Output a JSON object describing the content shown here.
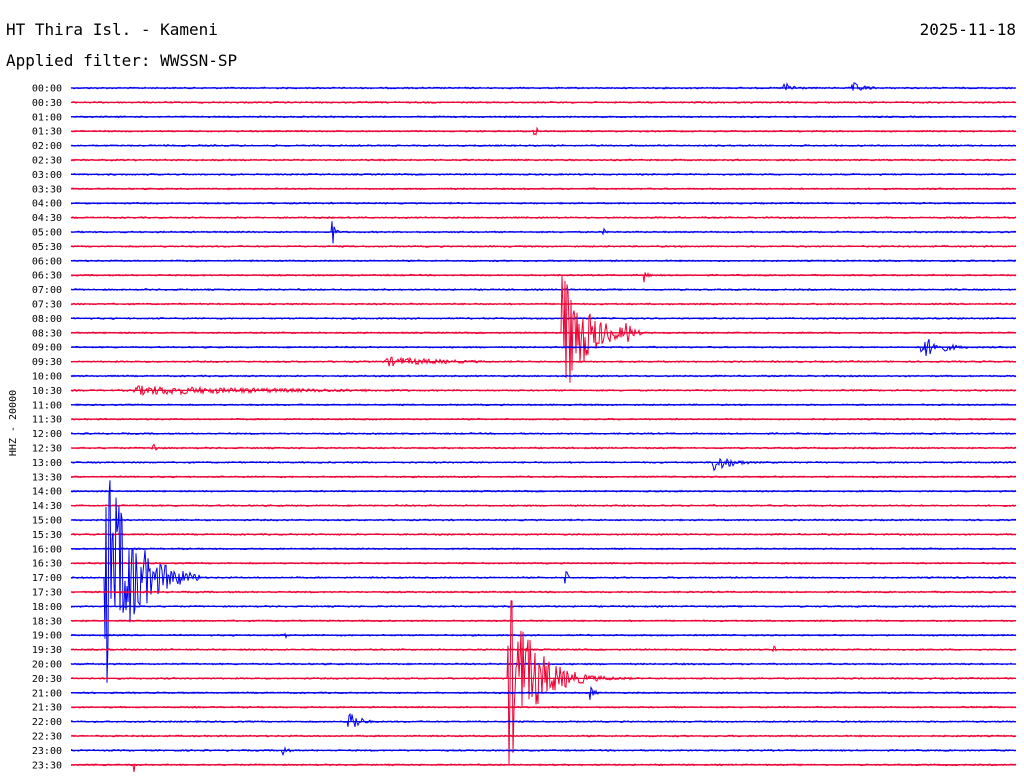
{
  "header": {
    "title": "HT Thira Isl. - Kameni",
    "date": "2025-11-18",
    "filter": "Applied filter: WWSSN-SP"
  },
  "chart_data": {
    "type": "line",
    "side_label": "HHZ - 20000",
    "colors": [
      "#0000ee",
      "#ee0033"
    ],
    "rows": [
      "00:00",
      "00:30",
      "01:00",
      "01:30",
      "02:00",
      "02:30",
      "03:00",
      "03:30",
      "04:00",
      "04:30",
      "05:00",
      "05:30",
      "06:00",
      "06:30",
      "07:00",
      "07:30",
      "08:00",
      "08:30",
      "09:00",
      "09:30",
      "10:00",
      "10:30",
      "11:00",
      "11:30",
      "12:00",
      "12:30",
      "13:00",
      "13:30",
      "14:00",
      "14:30",
      "15:00",
      "15:30",
      "16:00",
      "16:30",
      "17:00",
      "17:30",
      "18:00",
      "18:30",
      "19:00",
      "19:30",
      "20:00",
      "20:30",
      "21:00",
      "21:30",
      "22:00",
      "22:30",
      "23:00",
      "23:30"
    ],
    "x_range_minutes": [
      0,
      30
    ],
    "events": [
      {
        "row": 0,
        "minute": 22.6,
        "amp": 6,
        "dur": 1.5
      },
      {
        "row": 0,
        "minute": 24.8,
        "amp": 6,
        "dur": 1.5
      },
      {
        "row": 3,
        "minute": 14.7,
        "amp": 10,
        "dur": 0.3
      },
      {
        "row": 10,
        "minute": 8.3,
        "amp": 14,
        "dur": 0.3
      },
      {
        "row": 10,
        "minute": 16.9,
        "amp": 4,
        "dur": 0.3
      },
      {
        "row": 13,
        "minute": 18.2,
        "amp": 8,
        "dur": 0.4
      },
      {
        "row": 17,
        "minute": 15.6,
        "amp": 75,
        "dur": 2.5
      },
      {
        "row": 17,
        "minute": 17.6,
        "amp": 15,
        "dur": 0.8
      },
      {
        "row": 18,
        "minute": 27.0,
        "amp": 12,
        "dur": 2.2
      },
      {
        "row": 19,
        "minute": 10.0,
        "amp": 5,
        "dur": 7.0
      },
      {
        "row": 21,
        "minute": 2.0,
        "amp": 5,
        "dur": 18.0
      },
      {
        "row": 25,
        "minute": 2.6,
        "amp": 6,
        "dur": 0.6
      },
      {
        "row": 26,
        "minute": 20.4,
        "amp": 10,
        "dur": 2.0
      },
      {
        "row": 34,
        "minute": 1.1,
        "amp": 120,
        "dur": 3.0
      },
      {
        "row": 34,
        "minute": 15.7,
        "amp": 10,
        "dur": 0.3
      },
      {
        "row": 38,
        "minute": 6.8,
        "amp": 6,
        "dur": 0.3
      },
      {
        "row": 39,
        "minute": 22.3,
        "amp": 6,
        "dur": 0.3
      },
      {
        "row": 41,
        "minute": 13.9,
        "amp": 90,
        "dur": 2.8
      },
      {
        "row": 41,
        "minute": 14.5,
        "amp": 18,
        "dur": 4.0
      },
      {
        "row": 42,
        "minute": 16.5,
        "amp": 9,
        "dur": 0.4
      },
      {
        "row": 44,
        "minute": 8.8,
        "amp": 16,
        "dur": 1.0
      },
      {
        "row": 46,
        "minute": 6.7,
        "amp": 8,
        "dur": 0.5
      },
      {
        "row": 47,
        "minute": 2.0,
        "amp": 8,
        "dur": 0.2
      }
    ]
  }
}
